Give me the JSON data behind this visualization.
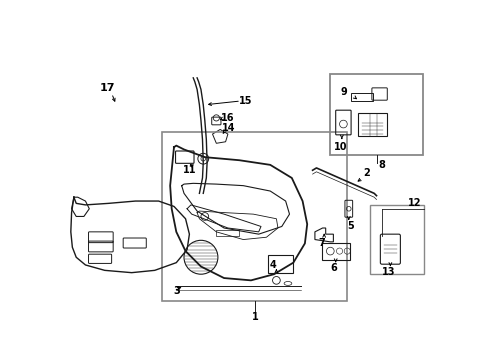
{
  "bg_color": "#ffffff",
  "line_color": "#1a1a1a",
  "gray_color": "#888888",
  "fig_width": 4.89,
  "fig_height": 3.6,
  "dpi": 100
}
